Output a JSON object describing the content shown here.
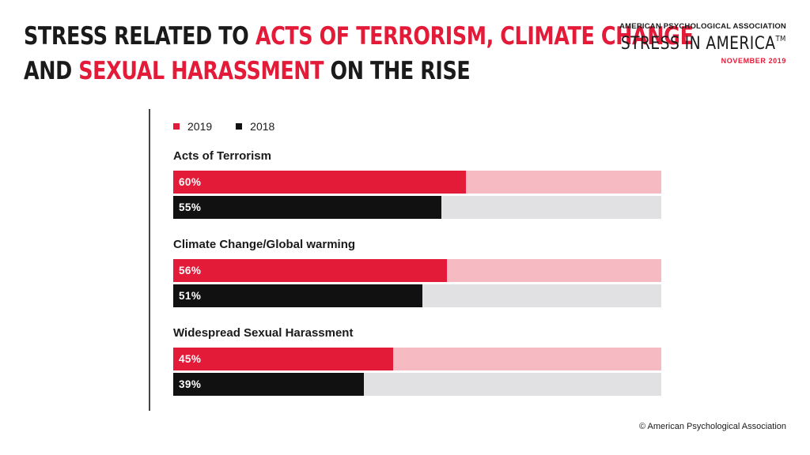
{
  "header": {
    "title_line1_plain": "STRESS RELATED TO ",
    "title_line1_highlight": "ACTS OF TERRORISM, CLIMATE CHANGE",
    "title_line2_plain_a": "AND ",
    "title_line2_highlight": "SEXUAL HARASSMENT",
    "title_line2_plain_b": " ON THE RISE"
  },
  "brand": {
    "org": "AMERICAN PSYCHOLOGICAL ASSOCIATION",
    "name": "STRESS IN AMERICA",
    "tm": "TM",
    "date": "NOVEMBER 2019"
  },
  "footer": {
    "copyright": "© American Psychological Association"
  },
  "colors": {
    "accent": "#e31b38",
    "accent_track": "#f6bac3",
    "dark": "#111111",
    "dark_track": "#e1e1e3"
  },
  "chart_data": {
    "type": "bar",
    "orientation": "horizontal",
    "categories": [
      "Acts of Terrorism",
      "Climate Change/Global warming",
      "Widespread Sexual Harassment"
    ],
    "series": [
      {
        "name": "2019",
        "values": [
          60,
          56,
          45
        ],
        "labels": [
          "60%",
          "56%",
          "45%"
        ]
      },
      {
        "name": "2018",
        "values": [
          55,
          51,
          39
        ],
        "labels": [
          "55%",
          "51%",
          "39%"
        ]
      }
    ],
    "xlim": [
      0,
      100
    ],
    "legend": "top-left"
  }
}
